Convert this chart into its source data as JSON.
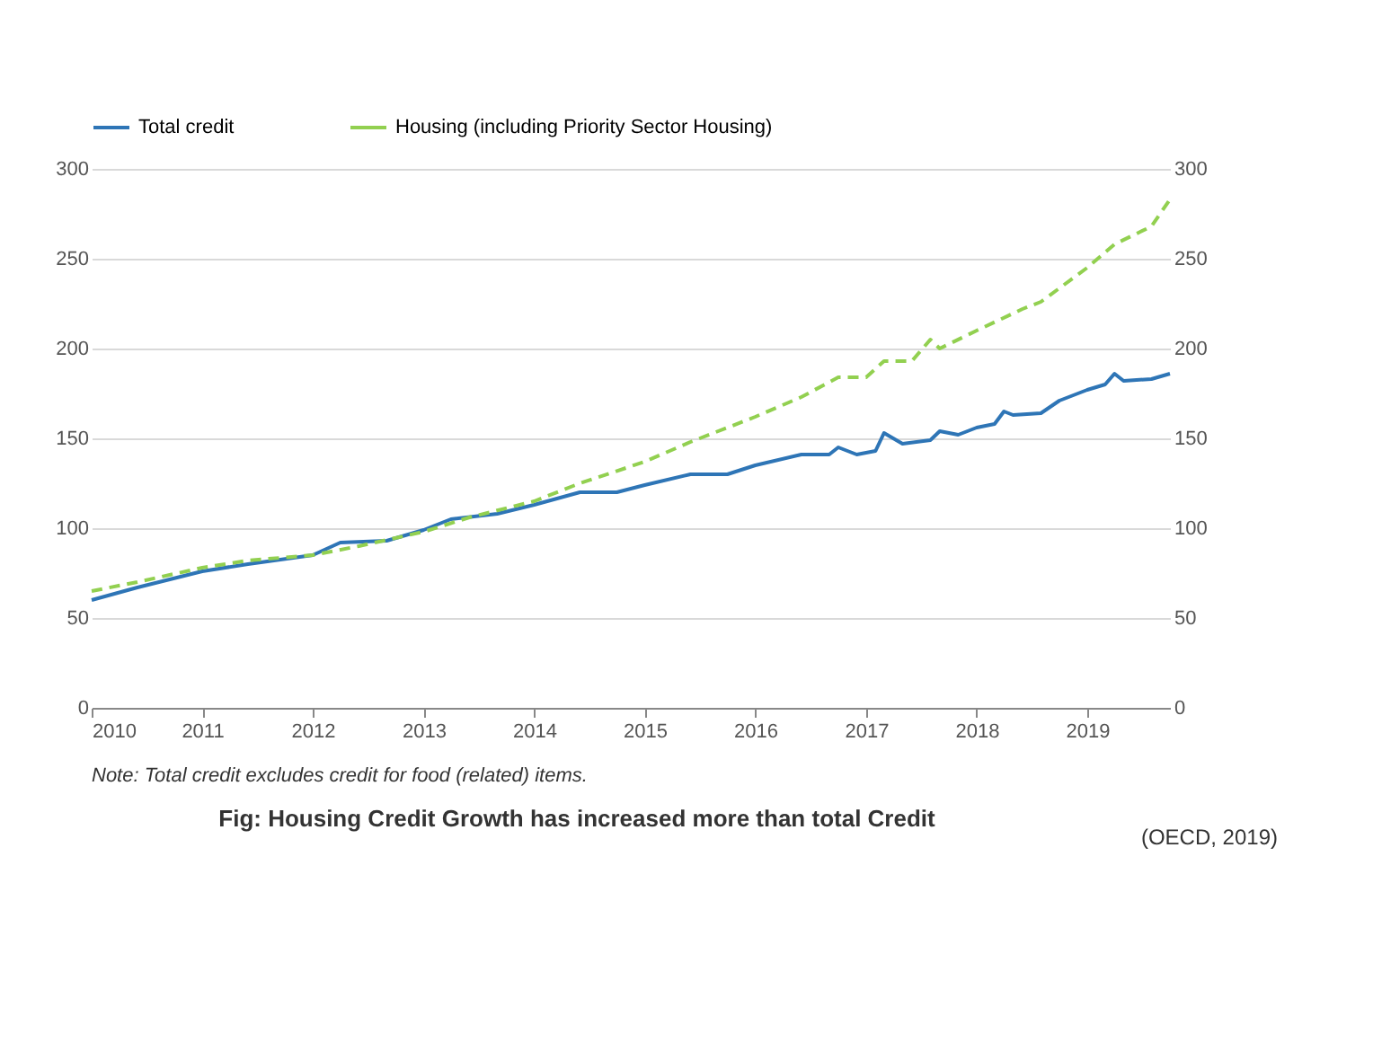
{
  "chart_data": {
    "type": "line",
    "annotations": [
      "Note: Total credit excludes credit for food (related) items.",
      "Fig: Housing Credit Growth has increased more than total Credit",
      "(OECD, 2019)"
    ],
    "ylim": [
      0,
      300
    ],
    "yticks": [
      0,
      50,
      100,
      150,
      200,
      250,
      300
    ],
    "y2lim": [
      0,
      300
    ],
    "y2ticks": [
      0,
      50,
      100,
      150,
      200,
      250,
      300
    ],
    "xlim": [
      "2010-01",
      "2019-10"
    ],
    "xticks": [
      "2010",
      "2011",
      "2012",
      "2013",
      "2014",
      "2015",
      "2016",
      "2017",
      "2018",
      "2019"
    ],
    "grid": "y",
    "legend": "top",
    "marker": "none",
    "series": [
      {
        "name": "Total credit",
        "color": "#2e75b6",
        "line_style": "solid",
        "x": [
          "2010-01",
          "2010-06",
          "2011-01",
          "2011-06",
          "2012-01",
          "2012-04",
          "2012-09",
          "2013-01",
          "2013-04",
          "2013-09",
          "2014-01",
          "2014-06",
          "2014-10",
          "2015-01",
          "2015-06",
          "2015-10",
          "2016-01",
          "2016-06",
          "2016-09",
          "2016-10",
          "2016-12",
          "2017-02",
          "2017-03",
          "2017-05",
          "2017-08",
          "2017-09",
          "2017-11",
          "2018-01",
          "2018-03",
          "2018-04",
          "2018-05",
          "2018-08",
          "2018-10",
          "2019-01",
          "2019-03",
          "2019-04",
          "2019-05",
          "2019-08",
          "2019-10"
        ],
        "values": [
          60,
          67,
          76,
          80,
          85,
          92,
          93,
          99,
          105,
          108,
          113,
          120,
          120,
          124,
          130,
          130,
          135,
          141,
          141,
          145,
          141,
          143,
          153,
          147,
          149,
          154,
          152,
          156,
          158,
          165,
          163,
          164,
          171,
          177,
          180,
          186,
          182,
          183,
          186
        ]
      },
      {
        "name": "Housing (including Priority Sector Housing)",
        "color": "#92d050",
        "line_style": "dashed",
        "x": [
          "2010-01",
          "2010-06",
          "2011-01",
          "2011-06",
          "2012-01",
          "2012-06",
          "2013-01",
          "2013-06",
          "2014-01",
          "2014-06",
          "2015-01",
          "2015-06",
          "2016-01",
          "2016-06",
          "2016-10",
          "2017-01",
          "2017-03",
          "2017-06",
          "2017-08",
          "2017-09",
          "2018-01",
          "2018-06",
          "2018-08",
          "2019-01",
          "2019-04",
          "2019-08",
          "2019-10"
        ],
        "values": [
          65,
          70,
          78,
          82,
          85,
          90,
          98,
          106,
          115,
          125,
          137,
          148,
          162,
          173,
          184,
          184,
          193,
          193,
          205,
          200,
          210,
          222,
          226,
          245,
          258,
          268,
          283
        ]
      }
    ]
  }
}
